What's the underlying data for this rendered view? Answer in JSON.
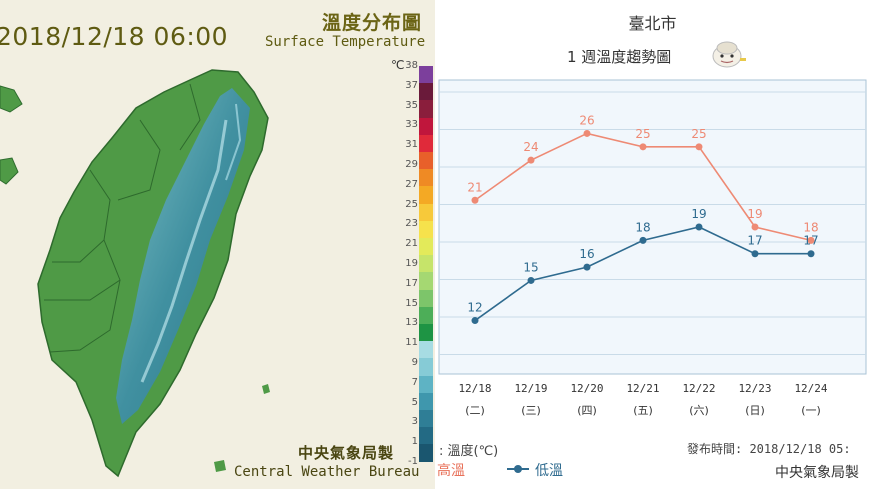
{
  "left_map": {
    "datetime": "2018/12/18 06:00",
    "title_zh": "溫度分布圖",
    "title_en": "Surface Temperature",
    "unit": "℃",
    "scale_ticks": [
      "38",
      "37",
      "35",
      "33",
      "31",
      "29",
      "27",
      "25",
      "23",
      "21",
      "19",
      "17",
      "15",
      "13",
      "11",
      "9",
      "7",
      "5",
      "3",
      "1",
      "-1"
    ],
    "credit_zh": "中央氣象局製",
    "credit_en": "Central Weather Bureau",
    "colors": {
      "background": "#f2efe1",
      "lowland_green": "#4e9a45",
      "mid_green": "#2f8a3e",
      "mountain_blue": "#9cd3de",
      "peak_teal": "#2d7f98"
    }
  },
  "chart_data": {
    "type": "line",
    "city": "臺北市",
    "title": "1 週溫度趨勢圖",
    "categories": [
      "12/18",
      "12/19",
      "12/20",
      "12/21",
      "12/22",
      "12/23",
      "12/24"
    ],
    "weekdays": [
      "(二)",
      "(三)",
      "(四)",
      "(五)",
      "(六)",
      "(日)",
      "(一)"
    ],
    "series": [
      {
        "name": "高溫",
        "values": [
          21,
          24,
          26,
          25,
          25,
          19,
          18
        ],
        "color": "#ee8a74"
      },
      {
        "name": "低溫",
        "values": [
          12,
          15,
          16,
          18,
          19,
          17,
          17
        ],
        "color": "#2f6b8f"
      }
    ],
    "ylim": [
      8,
      30
    ],
    "grid": true,
    "legend_label": ": 溫度(℃)",
    "issued": "發布時間: 2018/12/18 05:",
    "source": "中央氣象局製"
  }
}
